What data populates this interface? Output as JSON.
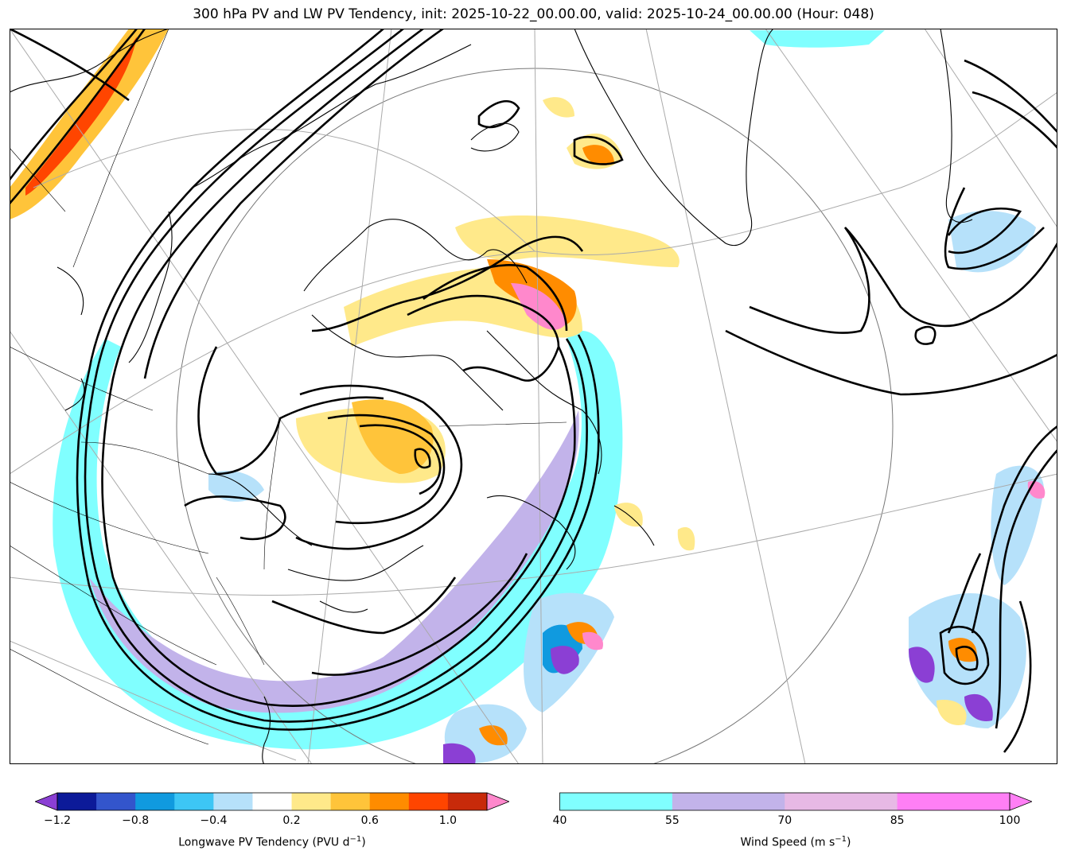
{
  "title": "300 hPa PV and LW PV Tendency, init: 2025-10-22_00.00.00, valid: 2025-10-24_00.00.00 (Hour: 048)",
  "colorbars": {
    "pv_tendency": {
      "label_main": "Longwave PV Tendency (PVU d",
      "label_sup": "−1",
      "label_end": ")",
      "ticks": [
        "−1.2",
        "−0.8",
        "−0.4",
        "0.2",
        "0.6",
        "1.0"
      ],
      "colors": [
        "#0c1a99",
        "#3355cc",
        "#109adf",
        "#3dc6f5",
        "#b6e1fa",
        "#ffffff",
        "#ffe98a",
        "#ffc43a",
        "#ff8c00",
        "#ff4500",
        "#c82a0a"
      ],
      "under_color": "#8b3fd4",
      "over_color": "#ff88cc"
    },
    "wind_speed": {
      "label_main": "Wind Speed (m s",
      "label_sup": "−1",
      "label_end": ")",
      "ticks": [
        "40",
        "55",
        "70",
        "85",
        "100"
      ],
      "colors": [
        "#80ffff",
        "#c2b3ea",
        "#e7b9e5",
        "#ff7ff5"
      ]
    }
  }
}
